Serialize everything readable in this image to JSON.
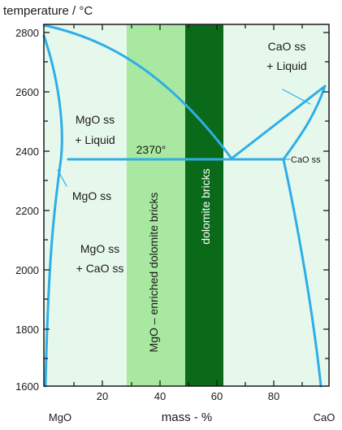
{
  "diagram": {
    "y_axis_title": "temperature / °C",
    "x_axis_title": "mass - %",
    "x_end_labels": {
      "left": "MgO",
      "right": "CaO"
    },
    "x_ticks": [
      "20",
      "40",
      "60",
      "80"
    ],
    "y_ticks": [
      "2800",
      "2600",
      "2400",
      "2200",
      "2000",
      "1800",
      "1600"
    ],
    "eutectic_temp_label": "2370°",
    "regions": {
      "cao_liquid_line1": "CaO ss",
      "cao_liquid_line2": "+ Liquid",
      "mgo_liquid_line1": "MgO ss",
      "mgo_liquid_line2": "+ Liquid",
      "mgo_ss": "MgO ss",
      "mgo_cao_line1": "MgO ss",
      "mgo_cao_line2": "+ CaO ss",
      "cao_ss": "CaO ss"
    },
    "bands": {
      "enriched_label": "MgO – enriched dolomite bricks",
      "dolomite_label": "dolomite bricks"
    },
    "colors": {
      "background_fill": "#e6f8ec",
      "enriched_band": "#a8e8a0",
      "dolomite_band": "#0a6a1a",
      "phase_lines": "#2eaee8",
      "frame": "#1a1a1a"
    }
  }
}
